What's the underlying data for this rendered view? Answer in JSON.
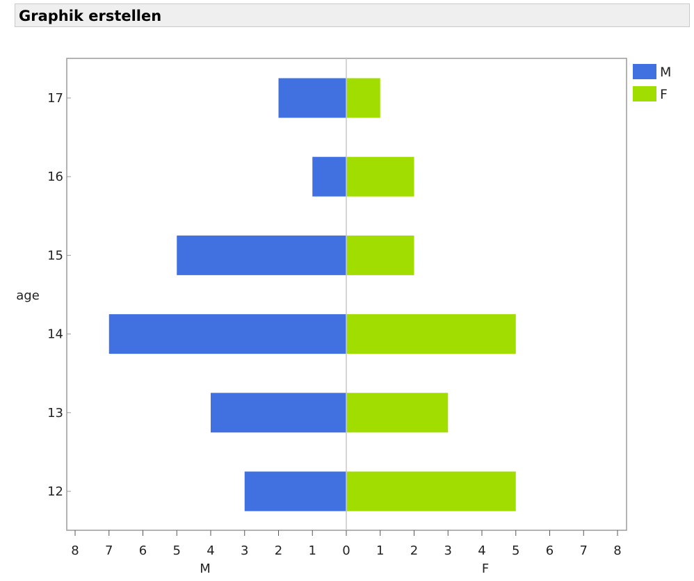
{
  "window": {
    "title": "Graphik erstellen"
  },
  "chart_data": {
    "type": "bar",
    "orientation": "horizontal",
    "layout": "back-to-back",
    "categories": [
      "17",
      "16",
      "15",
      "14",
      "13",
      "12"
    ],
    "series": [
      {
        "name": "M",
        "values": [
          2,
          1,
          5,
          7,
          4,
          3
        ],
        "color": "#4170e0",
        "side": "left"
      },
      {
        "name": "F",
        "values": [
          1,
          2,
          2,
          5,
          3,
          5
        ],
        "color": "#a2dd00",
        "side": "right"
      }
    ],
    "ylabel": "age",
    "xlabel_left": "M",
    "xlabel_right": "F",
    "xlim": [
      0,
      8
    ],
    "x_ticks_left": [
      "8",
      "7",
      "6",
      "5",
      "4",
      "3",
      "2",
      "1",
      "0"
    ],
    "x_ticks_right": [
      "1",
      "2",
      "3",
      "4",
      "5",
      "6",
      "7",
      "8"
    ],
    "legend": {
      "position": "right",
      "entries": [
        "M",
        "F"
      ]
    },
    "grid": false
  }
}
